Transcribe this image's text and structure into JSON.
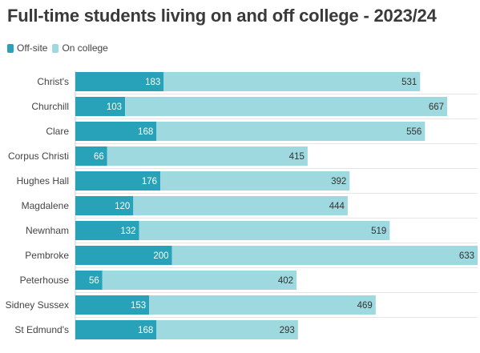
{
  "chart_data": {
    "type": "bar",
    "orientation": "horizontal",
    "stacked": true,
    "title": "Full-time students living on and off college - 2023/24",
    "categories": [
      "Christ's",
      "Churchill",
      "Clare",
      "Corpus Christi",
      "Hughes Hall",
      "Magdalene",
      "Newnham",
      "Pembroke",
      "Peterhouse",
      "Sidney Sussex",
      "St Edmund's"
    ],
    "series": [
      {
        "name": "Off-site",
        "color": "#27a2b8",
        "values": [
          183,
          103,
          168,
          66,
          176,
          120,
          132,
          200,
          56,
          153,
          168
        ]
      },
      {
        "name": "On college",
        "color": "#9fd9e0",
        "values": [
          531,
          667,
          556,
          415,
          392,
          444,
          519,
          633,
          402,
          469,
          293
        ]
      }
    ],
    "xlim": [
      0,
      833
    ],
    "grid": false,
    "legend_position": "top-left"
  }
}
